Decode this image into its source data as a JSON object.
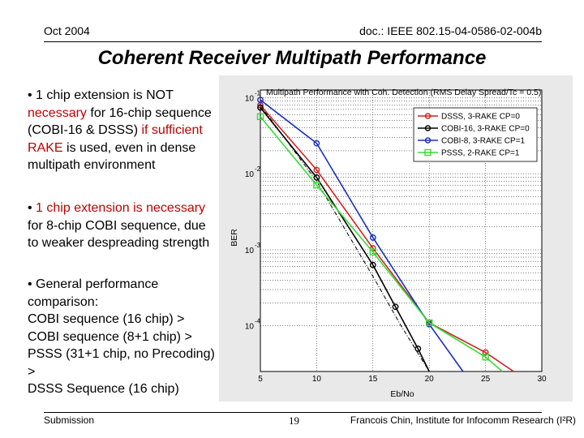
{
  "header": {
    "date": "Oct 2004",
    "doc": "doc.: IEEE 802.15-04-0586-02-004b"
  },
  "title": "Coherent Receiver Multipath Performance",
  "bullets": {
    "b1": {
      "mark": "• ",
      "t1": "1 chip extension is NOT",
      "t2": "necessary",
      "t3": " for 16-chip sequence (COBI-16 & DSSS) ",
      "t4": "if sufficient RAKE",
      "t5": " is used, even in dense multipath environment"
    },
    "b2": {
      "mark": "• ",
      "t1": "1 chip extension is necessary",
      "t2": " for 8-chip COBI sequence, due to weaker despreading strength"
    },
    "b3": {
      "line1": "• General performance comparison:",
      "line2": "COBI sequence (16 chip) >",
      "line3": "COBI sequence (8+1 chip) >",
      "line4": "PSSS (31+1 chip, no Precoding) >",
      "line5": "DSSS Sequence (16 chip)"
    }
  },
  "footer": {
    "left": "Submission",
    "page": "19",
    "right": "Francois Chin, Institute for Infocomm Research (I²R)"
  },
  "chart_data": {
    "type": "line",
    "title": "Multipath Performance with Coh. Detection (RMS Delay Spread/Tc = 0.5)",
    "xlabel": "Eb/No",
    "ylabel": "BER",
    "xlim": [
      5,
      30
    ],
    "ylim_exp": [
      -4.6,
      -0.9
    ],
    "x_ticks": [
      "5",
      "10",
      "15",
      "20",
      "25",
      "30"
    ],
    "y_ticks": [
      {
        "base": "10",
        "exp": "-1",
        "value": -1
      },
      {
        "base": "10",
        "exp": "-2",
        "value": -2
      },
      {
        "base": "10",
        "exp": "-3",
        "value": -3
      },
      {
        "base": "10",
        "exp": "-4",
        "value": -4
      }
    ],
    "grid": true,
    "legend_position": "top-right",
    "series": [
      {
        "name": "DSSS, 3-RAKE CP=0",
        "color": "#d42020",
        "marker": "circle",
        "x": [
          5,
          10,
          15,
          20,
          25,
          27.5
        ],
        "log10_ber": [
          -1.1,
          -1.95,
          -2.98,
          -3.96,
          -4.35,
          -4.6
        ]
      },
      {
        "name": "COBI-16, 3-RAKE CP=0",
        "color": "#000000",
        "marker": "circle",
        "x": [
          5,
          10,
          15,
          17,
          19,
          20
        ],
        "log10_ber": [
          -1.13,
          -2.05,
          -3.2,
          -3.75,
          -4.3,
          -4.6
        ]
      },
      {
        "name": "COBI-8, 3-RAKE CP=1",
        "color": "#1a2fc0",
        "marker": "circle",
        "x": [
          5,
          10,
          15,
          20,
          23
        ],
        "log10_ber": [
          -1.03,
          -1.6,
          -2.84,
          -3.98,
          -4.6
        ]
      },
      {
        "name": "PSSS, 2-RAKE CP=1",
        "color": "#33dd33",
        "marker": "square",
        "x": [
          5,
          10,
          15,
          20,
          25,
          26.5
        ],
        "log10_ber": [
          -1.25,
          -2.15,
          -3.03,
          -3.96,
          -4.41,
          -4.6
        ]
      }
    ],
    "reference_curve": {
      "name": "",
      "color": "#000000",
      "style": "dash-dot",
      "x": [
        5,
        10,
        15,
        17.5,
        20
      ],
      "log10_ber": [
        -1.1,
        -2.1,
        -3.35,
        -4.0,
        -4.6
      ]
    }
  }
}
